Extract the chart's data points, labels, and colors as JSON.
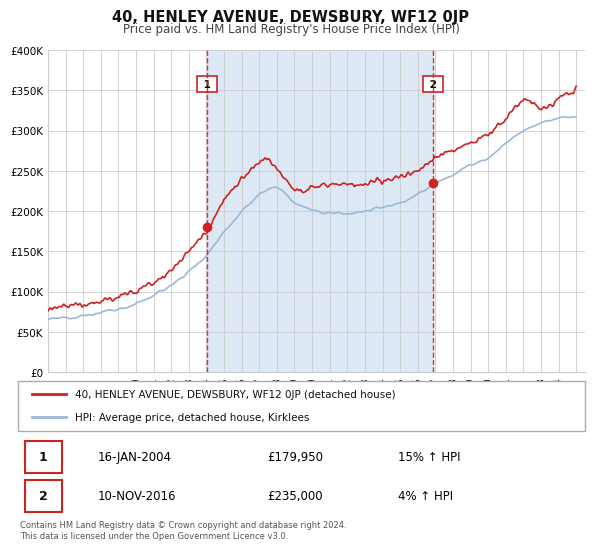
{
  "title": "40, HENLEY AVENUE, DEWSBURY, WF12 0JP",
  "subtitle": "Price paid vs. HM Land Registry's House Price Index (HPI)",
  "sale1_x": 2004.04,
  "sale1_price": 179950,
  "sale2_x": 2016.86,
  "sale2_price": 235000,
  "xmin": 1995.0,
  "xmax": 2025.5,
  "ymin": 0,
  "ymax": 400000,
  "yticks": [
    0,
    50000,
    100000,
    150000,
    200000,
    250000,
    300000,
    350000,
    400000
  ],
  "ytick_labels": [
    "£0",
    "£50K",
    "£100K",
    "£150K",
    "£200K",
    "£250K",
    "£300K",
    "£350K",
    "£400K"
  ],
  "xticks": [
    1995,
    1996,
    1997,
    1998,
    1999,
    2000,
    2001,
    2002,
    2003,
    2004,
    2005,
    2006,
    2007,
    2008,
    2009,
    2010,
    2011,
    2012,
    2013,
    2014,
    2015,
    2016,
    2017,
    2018,
    2019,
    2020,
    2021,
    2022,
    2023,
    2024,
    2025
  ],
  "hpi_color": "#9ab8d8",
  "price_color": "#cc2222",
  "vline_color": "#cc2222",
  "shade_color": "#dce9f5",
  "grid_color": "#cccccc",
  "bg_color": "#ffffff",
  "legend_edge_color": "#aaaaaa",
  "box_edge_color": "#cc2222",
  "legend_line1": "40, HENLEY AVENUE, DEWSBURY, WF12 0JP (detached house)",
  "legend_line2": "HPI: Average price, detached house, Kirklees",
  "table_date1": "16-JAN-2004",
  "table_price1": "£179,950",
  "table_hpi1": "15% ↑ HPI",
  "table_date2": "10-NOV-2016",
  "table_price2": "£235,000",
  "table_hpi2": "4% ↑ HPI",
  "footer": "Contains HM Land Registry data © Crown copyright and database right 2024.\nThis data is licensed under the Open Government Licence v3.0."
}
